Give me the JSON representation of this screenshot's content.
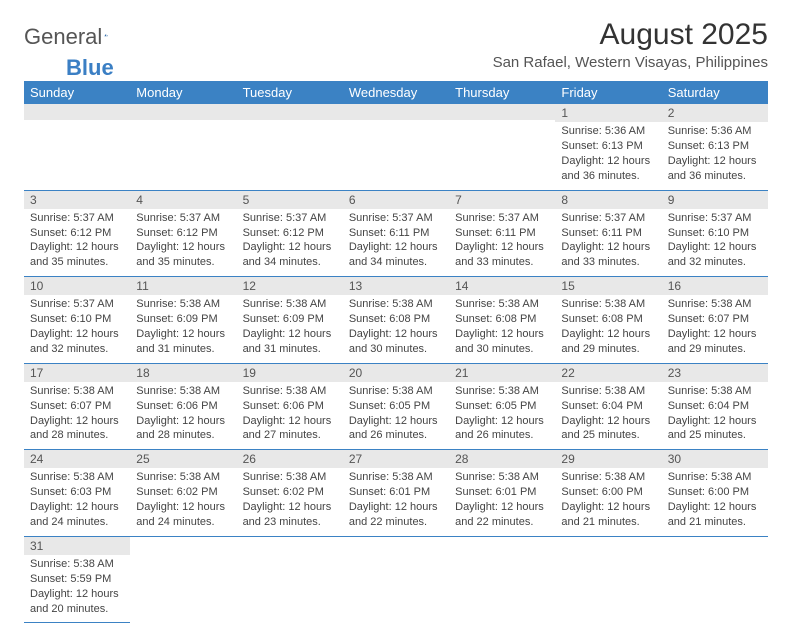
{
  "logo": {
    "text1": "General",
    "text2": "Blue"
  },
  "title": "August 2025",
  "location": "San Rafael, Western Visayas, Philippines",
  "colors": {
    "header_bg": "#3b82c4",
    "header_text": "#ffffff",
    "daynum_bg": "#e8e8e8",
    "cell_border": "#3b82c4",
    "body_text": "#444444"
  },
  "weekdays": [
    "Sunday",
    "Monday",
    "Tuesday",
    "Wednesday",
    "Thursday",
    "Friday",
    "Saturday"
  ],
  "weeks": [
    [
      null,
      null,
      null,
      null,
      null,
      {
        "n": "1",
        "sr": "5:36 AM",
        "ss": "6:13 PM",
        "dl": "12 hours and 36 minutes."
      },
      {
        "n": "2",
        "sr": "5:36 AM",
        "ss": "6:13 PM",
        "dl": "12 hours and 36 minutes."
      }
    ],
    [
      {
        "n": "3",
        "sr": "5:37 AM",
        "ss": "6:12 PM",
        "dl": "12 hours and 35 minutes."
      },
      {
        "n": "4",
        "sr": "5:37 AM",
        "ss": "6:12 PM",
        "dl": "12 hours and 35 minutes."
      },
      {
        "n": "5",
        "sr": "5:37 AM",
        "ss": "6:12 PM",
        "dl": "12 hours and 34 minutes."
      },
      {
        "n": "6",
        "sr": "5:37 AM",
        "ss": "6:11 PM",
        "dl": "12 hours and 34 minutes."
      },
      {
        "n": "7",
        "sr": "5:37 AM",
        "ss": "6:11 PM",
        "dl": "12 hours and 33 minutes."
      },
      {
        "n": "8",
        "sr": "5:37 AM",
        "ss": "6:11 PM",
        "dl": "12 hours and 33 minutes."
      },
      {
        "n": "9",
        "sr": "5:37 AM",
        "ss": "6:10 PM",
        "dl": "12 hours and 32 minutes."
      }
    ],
    [
      {
        "n": "10",
        "sr": "5:37 AM",
        "ss": "6:10 PM",
        "dl": "12 hours and 32 minutes."
      },
      {
        "n": "11",
        "sr": "5:38 AM",
        "ss": "6:09 PM",
        "dl": "12 hours and 31 minutes."
      },
      {
        "n": "12",
        "sr": "5:38 AM",
        "ss": "6:09 PM",
        "dl": "12 hours and 31 minutes."
      },
      {
        "n": "13",
        "sr": "5:38 AM",
        "ss": "6:08 PM",
        "dl": "12 hours and 30 minutes."
      },
      {
        "n": "14",
        "sr": "5:38 AM",
        "ss": "6:08 PM",
        "dl": "12 hours and 30 minutes."
      },
      {
        "n": "15",
        "sr": "5:38 AM",
        "ss": "6:08 PM",
        "dl": "12 hours and 29 minutes."
      },
      {
        "n": "16",
        "sr": "5:38 AM",
        "ss": "6:07 PM",
        "dl": "12 hours and 29 minutes."
      }
    ],
    [
      {
        "n": "17",
        "sr": "5:38 AM",
        "ss": "6:07 PM",
        "dl": "12 hours and 28 minutes."
      },
      {
        "n": "18",
        "sr": "5:38 AM",
        "ss": "6:06 PM",
        "dl": "12 hours and 28 minutes."
      },
      {
        "n": "19",
        "sr": "5:38 AM",
        "ss": "6:06 PM",
        "dl": "12 hours and 27 minutes."
      },
      {
        "n": "20",
        "sr": "5:38 AM",
        "ss": "6:05 PM",
        "dl": "12 hours and 26 minutes."
      },
      {
        "n": "21",
        "sr": "5:38 AM",
        "ss": "6:05 PM",
        "dl": "12 hours and 26 minutes."
      },
      {
        "n": "22",
        "sr": "5:38 AM",
        "ss": "6:04 PM",
        "dl": "12 hours and 25 minutes."
      },
      {
        "n": "23",
        "sr": "5:38 AM",
        "ss": "6:04 PM",
        "dl": "12 hours and 25 minutes."
      }
    ],
    [
      {
        "n": "24",
        "sr": "5:38 AM",
        "ss": "6:03 PM",
        "dl": "12 hours and 24 minutes."
      },
      {
        "n": "25",
        "sr": "5:38 AM",
        "ss": "6:02 PM",
        "dl": "12 hours and 24 minutes."
      },
      {
        "n": "26",
        "sr": "5:38 AM",
        "ss": "6:02 PM",
        "dl": "12 hours and 23 minutes."
      },
      {
        "n": "27",
        "sr": "5:38 AM",
        "ss": "6:01 PM",
        "dl": "12 hours and 22 minutes."
      },
      {
        "n": "28",
        "sr": "5:38 AM",
        "ss": "6:01 PM",
        "dl": "12 hours and 22 minutes."
      },
      {
        "n": "29",
        "sr": "5:38 AM",
        "ss": "6:00 PM",
        "dl": "12 hours and 21 minutes."
      },
      {
        "n": "30",
        "sr": "5:38 AM",
        "ss": "6:00 PM",
        "dl": "12 hours and 21 minutes."
      }
    ],
    [
      {
        "n": "31",
        "sr": "5:38 AM",
        "ss": "5:59 PM",
        "dl": "12 hours and 20 minutes."
      },
      null,
      null,
      null,
      null,
      null,
      null
    ]
  ],
  "labels": {
    "sunrise": "Sunrise:",
    "sunset": "Sunset:",
    "daylight": "Daylight:"
  }
}
